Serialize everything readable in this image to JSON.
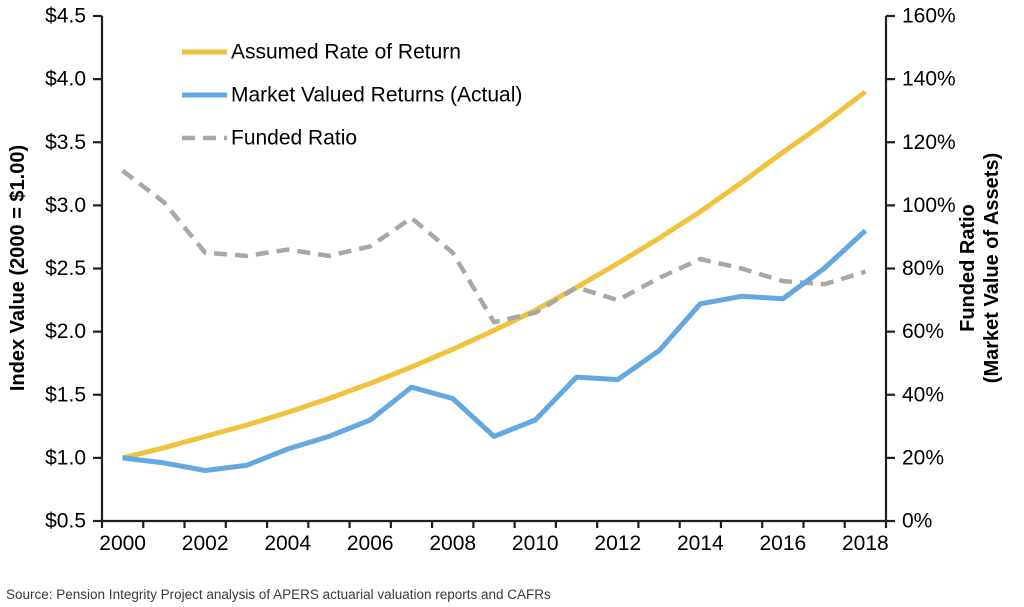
{
  "chart_data": {
    "type": "line",
    "title": "",
    "x": [
      2000,
      2001,
      2002,
      2003,
      2004,
      2005,
      2006,
      2007,
      2008,
      2009,
      2010,
      2011,
      2012,
      2013,
      2014,
      2015,
      2016,
      2017,
      2018
    ],
    "x_tick_labels": [
      "2000",
      "2002",
      "2004",
      "2006",
      "2008",
      "2010",
      "2012",
      "2014",
      "2016",
      "2018"
    ],
    "left_axis": {
      "title": "Index Value (2000 = $1.00)",
      "min": 0.5,
      "max": 4.5,
      "tick_labels": [
        "$0.5",
        "$1.0",
        "$1.5",
        "$2.0",
        "$2.5",
        "$3.0",
        "$3.5",
        "$4.0",
        "$4.5"
      ]
    },
    "right_axis": {
      "title_line1": "Funded Ratio",
      "title_line2": "(Market Value of Assets)",
      "min": 0,
      "max": 160,
      "tick_labels": [
        "0%",
        "20%",
        "40%",
        "60%",
        "80%",
        "100%",
        "120%",
        "140%",
        "160%"
      ]
    },
    "series": [
      {
        "name": "Assumed Rate of Return",
        "axis": "left",
        "color": "#F0C33C",
        "dash": null,
        "values": [
          1.0,
          1.08,
          1.17,
          1.26,
          1.36,
          1.47,
          1.59,
          1.72,
          1.86,
          2.01,
          2.17,
          2.35,
          2.54,
          2.74,
          2.95,
          3.18,
          3.42,
          3.65,
          3.9
        ]
      },
      {
        "name": "Market Valued Returns (Actual)",
        "axis": "left",
        "color": "#63A8E1",
        "dash": null,
        "values": [
          1.0,
          0.96,
          0.9,
          0.94,
          1.07,
          1.17,
          1.3,
          1.56,
          1.47,
          1.17,
          1.3,
          1.64,
          1.62,
          1.85,
          2.22,
          2.28,
          2.26,
          2.5,
          2.8
        ]
      },
      {
        "name": "Funded Ratio",
        "axis": "right",
        "color": "#A8A8A8",
        "dash": "13 8",
        "values": [
          111,
          101,
          85,
          84,
          86,
          84,
          87,
          96,
          85,
          63,
          66,
          74,
          70,
          77,
          83,
          80,
          76,
          75,
          79
        ]
      }
    ],
    "legend_position": "top-left",
    "grid": false,
    "axis_color": "#1f1f1f"
  },
  "source_note": "Source: Pension Integrity Project analysis of APERS actuarial valuation reports and CAFRs"
}
